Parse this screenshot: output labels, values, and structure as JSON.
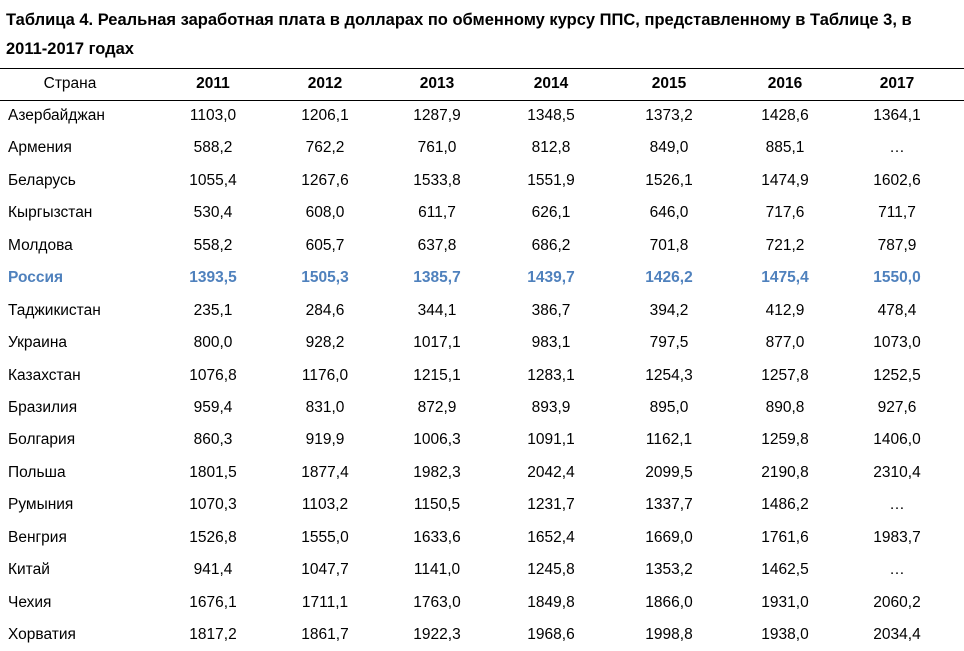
{
  "title": "Таблица 4. Реальная заработная плата в долларах по обменному курсу ППС, представленному в Таблице 3, в 2011-2017 годах",
  "table": {
    "header": [
      "Страна",
      "2011",
      "2012",
      "2013",
      "2014",
      "2015",
      "2016",
      "2017"
    ],
    "rows": [
      [
        "Азербайджан",
        "1103,0",
        "1206,1",
        "1287,9",
        "1348,5",
        "1373,2",
        "1428,6",
        "1364,1"
      ],
      [
        "Армения",
        "588,2",
        "762,2",
        "761,0",
        "812,8",
        "849,0",
        "885,1",
        "…"
      ],
      [
        "Беларусь",
        "1055,4",
        "1267,6",
        "1533,8",
        "1551,9",
        "1526,1",
        "1474,9",
        "1602,6"
      ],
      [
        "Кыргызстан",
        "530,4",
        "608,0",
        "611,7",
        "626,1",
        "646,0",
        "717,6",
        "711,7"
      ],
      [
        "Молдова",
        "558,2",
        "605,7",
        "637,8",
        "686,2",
        "701,8",
        "721,2",
        "787,9"
      ],
      [
        "Россия",
        "1393,5",
        "1505,3",
        "1385,7",
        "1439,7",
        "1426,2",
        "1475,4",
        "1550,0"
      ],
      [
        "Таджикистан",
        "235,1",
        "284,6",
        "344,1",
        "386,7",
        "394,2",
        "412,9",
        "478,4"
      ],
      [
        "Украина",
        "800,0",
        "928,2",
        "1017,1",
        "983,1",
        "797,5",
        "877,0",
        "1073,0"
      ],
      [
        "Казахстан",
        "1076,8",
        "1176,0",
        "1215,1",
        "1283,1",
        "1254,3",
        "1257,8",
        "1252,5"
      ],
      [
        "Бразилия",
        "959,4",
        "831,0",
        "872,9",
        "893,9",
        "895,0",
        "890,8",
        "927,6"
      ],
      [
        "Болгария",
        "860,3",
        "919,9",
        "1006,3",
        "1091,1",
        "1162,1",
        "1259,8",
        "1406,0"
      ],
      [
        "Польша",
        "1801,5",
        "1877,4",
        "1982,3",
        "2042,4",
        "2099,5",
        "2190,8",
        "2310,4"
      ],
      [
        "Румыния",
        "1070,3",
        "1103,2",
        "1150,5",
        "1231,7",
        "1337,7",
        "1486,2",
        "…"
      ],
      [
        "Венгрия",
        "1526,8",
        "1555,0",
        "1633,6",
        "1652,4",
        "1669,0",
        "1761,6",
        "1983,7"
      ],
      [
        "Китай",
        "941,4",
        "1047,7",
        "1141,0",
        "1245,8",
        "1353,2",
        "1462,5",
        "…"
      ],
      [
        "Чехия",
        "1676,1",
        "1711,1",
        "1763,0",
        "1849,8",
        "1866,0",
        "1931,0",
        "2060,2"
      ],
      [
        "Хорватия",
        "1817,2",
        "1861,7",
        "1922,3",
        "1968,6",
        "1998,8",
        "1938,0",
        "2034,4"
      ]
    ]
  }
}
